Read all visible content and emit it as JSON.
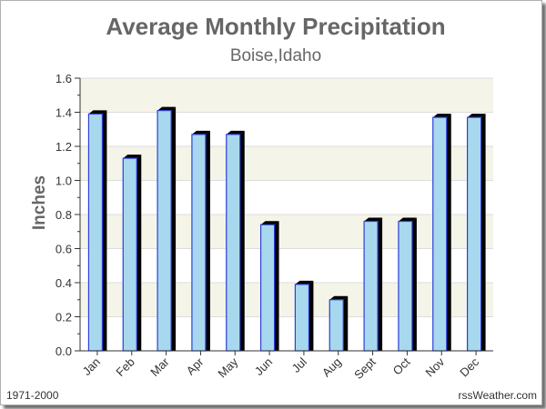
{
  "chart_data": {
    "type": "bar",
    "title": "Average Monthly Precipitation",
    "subtitle": "Boise,Idaho",
    "ylabel": "Inches",
    "xlabel": "",
    "ylim": [
      0,
      1.6
    ],
    "yticks": [
      "0.0",
      "0.2",
      "0.4",
      "0.6",
      "0.8",
      "1.0",
      "1.2",
      "1.4",
      "1.6"
    ],
    "categories": [
      "Jan",
      "Feb",
      "Mar",
      "Apr",
      "May",
      "Jun",
      "Jul",
      "Aug",
      "Sept",
      "Oct",
      "Nov",
      "Dec"
    ],
    "values": [
      1.39,
      1.13,
      1.41,
      1.27,
      1.27,
      0.74,
      0.39,
      0.3,
      0.76,
      0.76,
      1.37,
      1.37
    ],
    "grid": true,
    "colors": {
      "bar_fill": "#a8d8ee",
      "bar_stroke": "#2d3fd8",
      "bar_side": "#000000",
      "band_light": "#f5f4e8",
      "band_white": "#ffffff",
      "grid_line": "#dcdcdc",
      "axis": "#333333",
      "text": "#666666"
    }
  },
  "footer": {
    "period": "1971-2000",
    "source": "rssWeather.com"
  }
}
